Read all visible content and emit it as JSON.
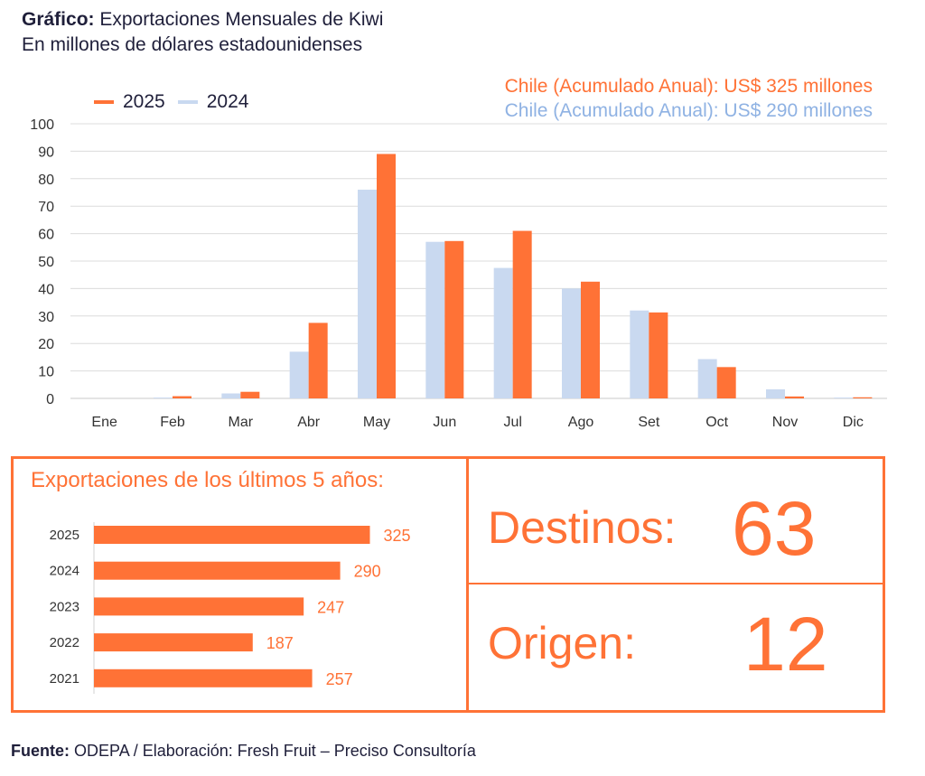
{
  "header": {
    "title_bold": "Gráfico:",
    "title_rest": "Exportaciones Mensuales de Kiwi",
    "subtitle": "En millones de dólares estadounidenses"
  },
  "legend": [
    {
      "label": "2025",
      "color": "#FF7236"
    },
    {
      "label": "2024",
      "color": "#C9D9F0"
    }
  ],
  "accumulated": {
    "line_2025": "Chile (Acumulado Anual): US$ 325 millones",
    "line_2024": "Chile (Acumulado Anual): US$ 290 millones",
    "color_2025": "#FF7236",
    "color_2024": "#8FB2E3"
  },
  "chart_data": [
    {
      "type": "bar",
      "categories": [
        "Ene",
        "Feb",
        "Mar",
        "Abr",
        "May",
        "Jun",
        "Jul",
        "Ago",
        "Set",
        "Oct",
        "Nov",
        "Dic"
      ],
      "series": [
        {
          "name": "2024",
          "color": "#C9D9F0",
          "values": [
            0,
            0.3,
            1.8,
            17,
            76,
            57,
            47.5,
            40,
            32,
            14.3,
            3.3,
            0.3
          ]
        },
        {
          "name": "2025",
          "color": "#FF7236",
          "values": [
            0,
            0.8,
            2.4,
            27.5,
            89,
            57.3,
            61,
            42.5,
            31.3,
            11.4,
            0.7,
            0.4
          ]
        }
      ],
      "ylim": [
        0,
        100
      ],
      "yticks": [
        0,
        10,
        20,
        30,
        40,
        50,
        60,
        70,
        80,
        90,
        100
      ],
      "grid": true,
      "legend_position": "top-left"
    },
    {
      "type": "bar",
      "orientation": "horizontal",
      "title": "Exportaciones de los últimos 5 años:",
      "categories": [
        "2025",
        "2024",
        "2023",
        "2022",
        "2021"
      ],
      "values": [
        325,
        290,
        247,
        187,
        257
      ],
      "color": "#FF7236"
    }
  ],
  "stats": {
    "destinos_label": "Destinos:",
    "destinos_value": "63",
    "origen_label": "Origen:",
    "origen_value": "12"
  },
  "footer": {
    "bold": "Fuente:",
    "rest": "ODEPA / Elaboración: Fresh Fruit – Preciso Consultoría"
  }
}
